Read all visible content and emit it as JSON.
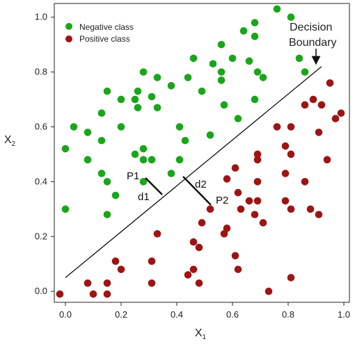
{
  "chart_data": {
    "type": "scatter",
    "xlabel": "X",
    "xlabel_sub": "1",
    "ylabel": "X",
    "ylabel_sub": "2",
    "xlim": [
      -0.04,
      1.02
    ],
    "ylim": [
      -0.04,
      1.05
    ],
    "x_ticks": [
      "0.0",
      "0.2",
      "0.4",
      "0.6",
      "0.8",
      "1.0"
    ],
    "y_ticks": [
      "0.0",
      "0.2",
      "0.4",
      "0.6",
      "0.8",
      "1.0"
    ],
    "x_tick_values": [
      0.0,
      0.2,
      0.4,
      0.6,
      0.8,
      1.0
    ],
    "y_tick_values": [
      0.0,
      0.2,
      0.4,
      0.6,
      0.8,
      1.0
    ],
    "grid": false,
    "legend_position": "top-left",
    "series": [
      {
        "name": "Negative class",
        "color": "#1aa61a",
        "points": [
          [
            0.76,
            1.03
          ],
          [
            0.68,
            0.98
          ],
          [
            0.81,
            1.0
          ],
          [
            0.64,
            0.95
          ],
          [
            0.68,
            0.93
          ],
          [
            0.84,
            0.85
          ],
          [
            0.56,
            0.9
          ],
          [
            0.6,
            0.85
          ],
          [
            0.53,
            0.83
          ],
          [
            0.66,
            0.84
          ],
          [
            0.46,
            0.85
          ],
          [
            0.86,
            0.8
          ],
          [
            0.28,
            0.8
          ],
          [
            0.56,
            0.8
          ],
          [
            0.69,
            0.8
          ],
          [
            0.71,
            0.78
          ],
          [
            0.33,
            0.78
          ],
          [
            0.44,
            0.78
          ],
          [
            0.56,
            0.77
          ],
          [
            0.38,
            0.75
          ],
          [
            0.15,
            0.73
          ],
          [
            0.26,
            0.73
          ],
          [
            0.49,
            0.73
          ],
          [
            0.2,
            0.7
          ],
          [
            0.31,
            0.71
          ],
          [
            0.68,
            0.7
          ],
          [
            0.25,
            0.7
          ],
          [
            0.26,
            0.67
          ],
          [
            0.33,
            0.67
          ],
          [
            0.57,
            0.68
          ],
          [
            0.13,
            0.65
          ],
          [
            0.62,
            0.63
          ],
          [
            0.03,
            0.6
          ],
          [
            0.2,
            0.6
          ],
          [
            0.41,
            0.6
          ],
          [
            0.52,
            0.57
          ],
          [
            0.08,
            0.58
          ],
          [
            0.13,
            0.55
          ],
          [
            0.43,
            0.55
          ],
          [
            0.0,
            0.52
          ],
          [
            0.28,
            0.52
          ],
          [
            0.25,
            0.5
          ],
          [
            0.28,
            0.48
          ],
          [
            0.31,
            0.48
          ],
          [
            0.41,
            0.48
          ],
          [
            0.08,
            0.48
          ],
          [
            0.13,
            0.43
          ],
          [
            0.38,
            0.43
          ],
          [
            0.15,
            0.4
          ],
          [
            0.28,
            0.4
          ],
          [
            0.18,
            0.35
          ],
          [
            0.0,
            0.3
          ],
          [
            0.15,
            0.28
          ]
        ]
      },
      {
        "name": "Positive class",
        "color": "#9e1414",
        "points": [
          [
            0.95,
            0.76
          ],
          [
            0.86,
            0.68
          ],
          [
            0.89,
            0.7
          ],
          [
            0.92,
            0.68
          ],
          [
            0.99,
            0.65
          ],
          [
            0.97,
            0.63
          ],
          [
            0.76,
            0.6
          ],
          [
            0.81,
            0.6
          ],
          [
            0.91,
            0.58
          ],
          [
            0.79,
            0.53
          ],
          [
            0.69,
            0.5
          ],
          [
            0.69,
            0.48
          ],
          [
            0.81,
            0.5
          ],
          [
            0.94,
            0.48
          ],
          [
            0.61,
            0.45
          ],
          [
            0.79,
            0.43
          ],
          [
            0.58,
            0.41
          ],
          [
            0.69,
            0.4
          ],
          [
            0.86,
            0.4
          ],
          [
            0.62,
            0.36
          ],
          [
            0.66,
            0.33
          ],
          [
            0.69,
            0.33
          ],
          [
            0.79,
            0.33
          ],
          [
            0.63,
            0.3
          ],
          [
            0.81,
            0.3
          ],
          [
            0.88,
            0.3
          ],
          [
            0.91,
            0.28
          ],
          [
            0.68,
            0.28
          ],
          [
            0.71,
            0.25
          ],
          [
            0.52,
            0.3
          ],
          [
            0.49,
            0.25
          ],
          [
            0.58,
            0.23
          ],
          [
            0.33,
            0.21
          ],
          [
            0.57,
            0.21
          ],
          [
            0.46,
            0.18
          ],
          [
            0.48,
            0.16
          ],
          [
            0.61,
            0.13
          ],
          [
            0.18,
            0.11
          ],
          [
            0.31,
            0.11
          ],
          [
            0.2,
            0.08
          ],
          [
            0.46,
            0.08
          ],
          [
            0.62,
            0.08
          ],
          [
            0.44,
            0.06
          ],
          [
            0.81,
            0.05
          ],
          [
            0.08,
            0.03
          ],
          [
            0.15,
            0.03
          ],
          [
            0.31,
            0.03
          ],
          [
            0.48,
            0.03
          ],
          [
            0.73,
            0.0
          ],
          [
            -0.02,
            -0.01
          ],
          [
            0.1,
            -0.01
          ],
          [
            0.15,
            -0.01
          ]
        ]
      }
    ],
    "decision_boundary": [
      [
        0.0,
        0.05
      ],
      [
        0.92,
        0.82
      ]
    ],
    "annotations": {
      "p1_label": "P1",
      "p2_label": "P2",
      "d1_label": "d1",
      "d2_label": "d2",
      "callout_line1": "Decision",
      "callout_line2": "Boundary"
    }
  }
}
